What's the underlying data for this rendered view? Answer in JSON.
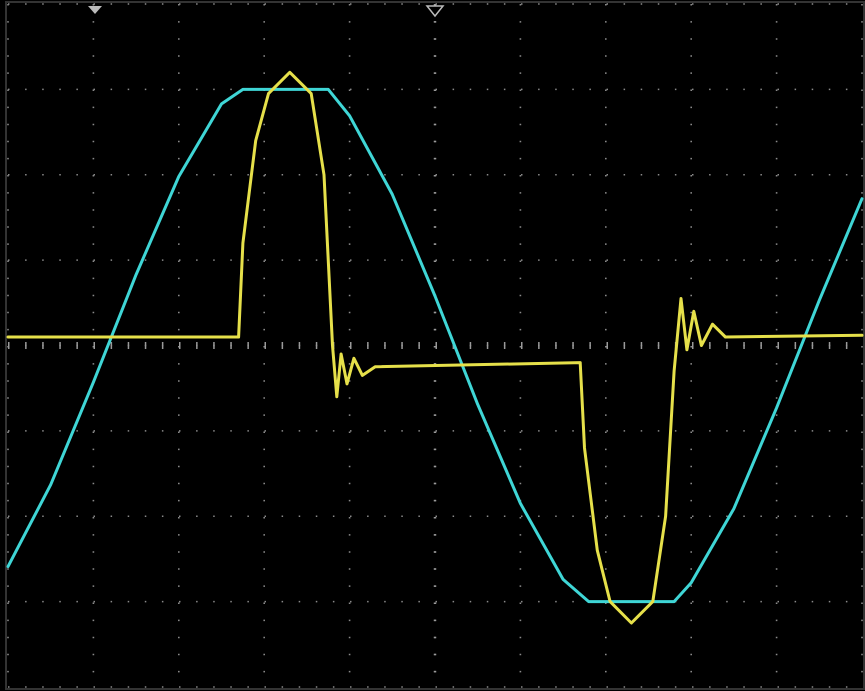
{
  "chart_data": {
    "type": "line",
    "grid": true,
    "xlim": [
      0,
      10
    ],
    "ylim": [
      -4,
      4
    ],
    "xticks": [
      0,
      1,
      2,
      3,
      4,
      5,
      6,
      7,
      8,
      9,
      10
    ],
    "yticks": [
      -4,
      -3,
      -2,
      -1,
      0,
      1,
      2,
      3,
      4
    ],
    "series": [
      {
        "color": "#3fd6d6",
        "x": [
          0,
          0.5,
          1,
          1.5,
          2,
          2.5,
          2.75,
          3,
          3.5,
          3.75,
          4,
          4.5,
          5,
          5.5,
          6,
          6.5,
          6.8,
          7,
          7.5,
          7.8,
          8,
          8.5,
          9,
          9.5,
          10
        ],
        "values": [
          -2.59,
          -1.63,
          -0.43,
          0.83,
          1.98,
          2.83,
          3.0,
          3.0,
          3.0,
          3.0,
          2.69,
          1.77,
          0.58,
          -0.69,
          -1.85,
          -2.74,
          -3.0,
          -3.0,
          -3.0,
          -3.0,
          -2.78,
          -1.91,
          -0.73,
          0.53,
          1.72
        ]
      },
      {
        "color": "#e6e04a",
        "x": [
          0,
          2.7,
          2.75,
          2.9,
          3.05,
          3.3,
          3.55,
          3.7,
          3.8,
          3.85,
          3.9,
          3.97,
          4.05,
          4.15,
          4.3,
          6.7,
          6.75,
          6.9,
          7.05,
          7.3,
          7.55,
          7.7,
          7.8,
          7.88,
          7.95,
          8.03,
          8.12,
          8.25,
          8.4,
          10
        ],
        "values": [
          0.1,
          0.1,
          1.2,
          2.4,
          2.95,
          3.2,
          2.95,
          2.0,
          0.0,
          -0.6,
          -0.1,
          -0.45,
          -0.15,
          -0.35,
          -0.25,
          -0.2,
          -1.2,
          -2.4,
          -3.0,
          -3.25,
          -3.0,
          -2.0,
          -0.3,
          0.55,
          -0.05,
          0.4,
          0.0,
          0.25,
          0.1,
          0.12
        ]
      }
    ]
  }
}
